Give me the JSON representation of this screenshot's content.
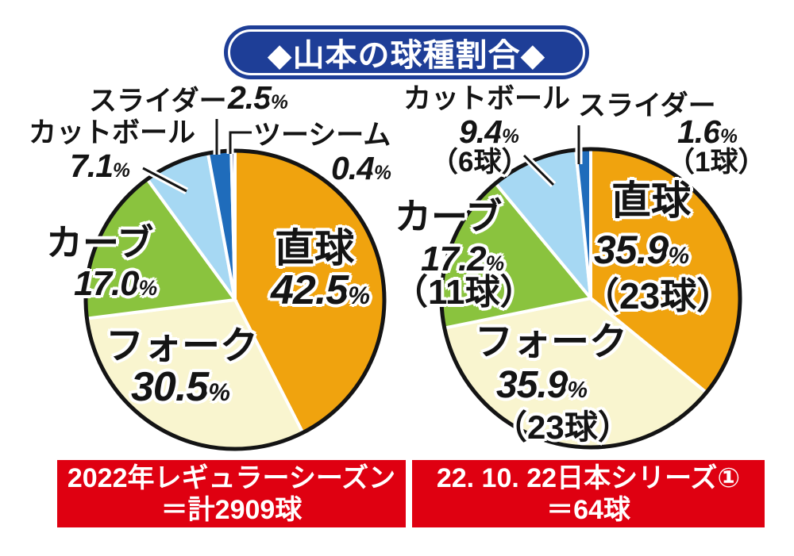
{
  "title": "◆山本の球種割合◆",
  "colors": {
    "title_bg": "#1e3e97",
    "caption_bg": "#df0011",
    "pie_ring": "#141414",
    "label_text": "#141414",
    "label_outline": "#ffffff"
  },
  "chart_data": [
    {
      "type": "pie",
      "title": "2022年レギュラーシーズン＝計2909球",
      "caption_lines": [
        "2022年レギュラーシーズン",
        "＝計2909球"
      ],
      "unit": "%",
      "start_angle_deg": 0,
      "direction": "clockwise",
      "legend": "labels-on-and-around-slices",
      "slices": [
        {
          "label": "直球",
          "value": 42.5,
          "value_display": "42.5",
          "color": "#f0a30e"
        },
        {
          "label": "フォーク",
          "value": 30.5,
          "value_display": "30.5",
          "color": "#f9f5cf"
        },
        {
          "label": "カーブ",
          "value": 17.0,
          "value_display": "17.0",
          "color": "#8ac33e"
        },
        {
          "label": "カットボール",
          "value": 7.1,
          "value_display": "7.1",
          "color": "#a6d8f3"
        },
        {
          "label": "スライダー",
          "value": 2.5,
          "value_display": "2.5",
          "color": "#1f6cbb"
        },
        {
          "label": "ツーシーム",
          "value": 0.4,
          "value_display": "0.4",
          "color": "#2c3a85"
        }
      ]
    },
    {
      "type": "pie",
      "title": "22. 10. 22日本シリーズ①＝64球",
      "caption_lines": [
        "22. 10. 22日本シリーズ①",
        "＝64球"
      ],
      "unit": "%",
      "start_angle_deg": 0,
      "direction": "clockwise",
      "legend": "labels-on-and-around-slices",
      "slices": [
        {
          "label": "直球",
          "value": 35.9,
          "value_display": "35.9",
          "balls": "（23球）",
          "color": "#f0a30e"
        },
        {
          "label": "フォーク",
          "value": 35.9,
          "value_display": "35.9",
          "balls": "（23球）",
          "color": "#f9f5cf"
        },
        {
          "label": "カーブ",
          "value": 17.2,
          "value_display": "17.2",
          "balls": "（11球）",
          "color": "#8ac33e"
        },
        {
          "label": "カットボール",
          "value": 9.4,
          "value_display": "9.4",
          "balls": "（6球）",
          "color": "#a6d8f3"
        },
        {
          "label": "スライダー",
          "value": 1.6,
          "value_display": "1.6",
          "balls": "（1球）",
          "color": "#1f6cbb"
        }
      ]
    }
  ]
}
